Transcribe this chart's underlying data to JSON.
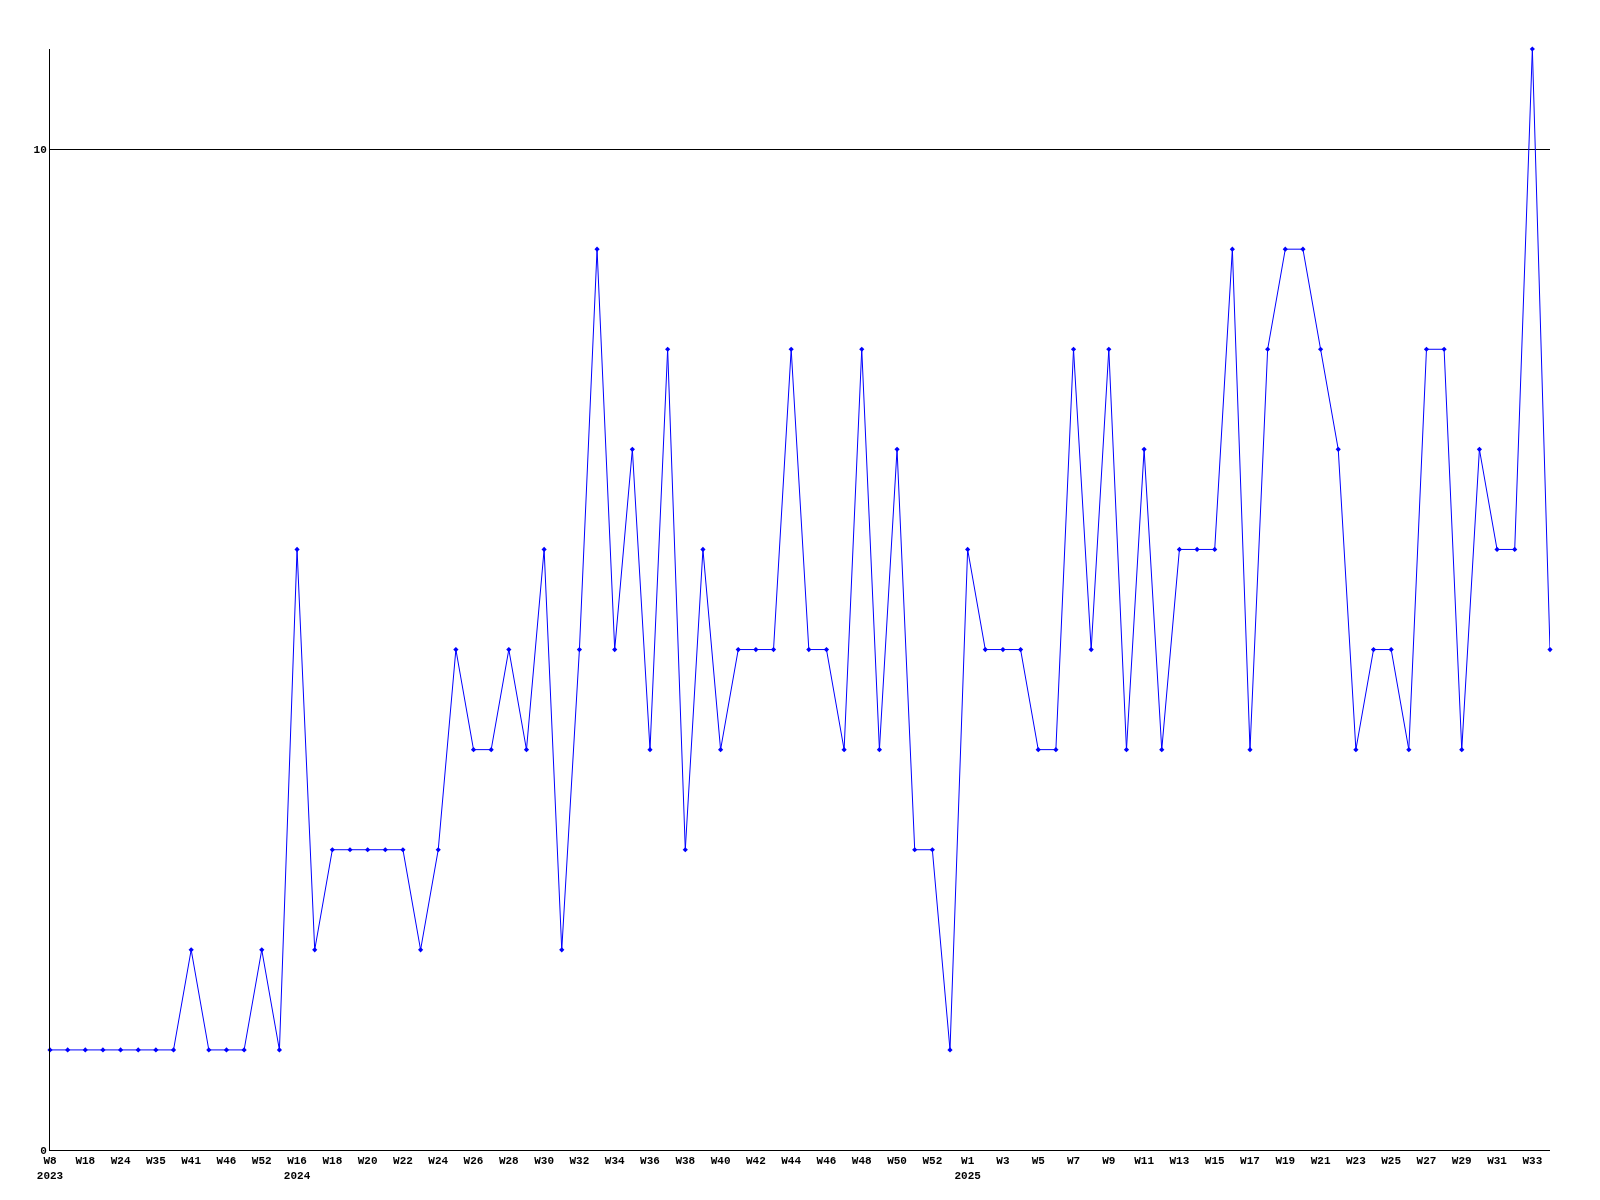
{
  "chart_data": {
    "type": "line",
    "categories": [
      "W8\n2023",
      null,
      "W18",
      null,
      "W24",
      null,
      "W35",
      null,
      "W41",
      null,
      "W46",
      null,
      "W52",
      null,
      "W16\n2024",
      null,
      "W18",
      null,
      "W20",
      null,
      "W22",
      null,
      "W24",
      null,
      "W26",
      null,
      "W28",
      null,
      "W30",
      null,
      "W32",
      null,
      "W34",
      null,
      "W36",
      null,
      "W38",
      null,
      "W40",
      null,
      "W42",
      null,
      "W44",
      null,
      "W46",
      null,
      "W48",
      null,
      "W50",
      null,
      "W52",
      null,
      "W1\n2025",
      null,
      "W3",
      null,
      "W5",
      null,
      "W7",
      null,
      "W9",
      null,
      "W11",
      null,
      "W13",
      null,
      "W15",
      null,
      "W17",
      null,
      "W19",
      null,
      "W21",
      null,
      "W23",
      null,
      "W25",
      null,
      "W27",
      null,
      "W29",
      null,
      "W31",
      null,
      "W33",
      null
    ],
    "series": [
      {
        "color": "#0000ff",
        "values": [
          1,
          1,
          1,
          1,
          1,
          1,
          1,
          1,
          2,
          1,
          1,
          1,
          2,
          1,
          6,
          2,
          3,
          3,
          3,
          3,
          3,
          2,
          3,
          5,
          4,
          4,
          5,
          4,
          6,
          2,
          5,
          9,
          5,
          7,
          4,
          8,
          3,
          6,
          4,
          5,
          5,
          5,
          8,
          5,
          5,
          4,
          8,
          4,
          7,
          3,
          3,
          1,
          6,
          5,
          5,
          5,
          4,
          4,
          8,
          5,
          8,
          4,
          7,
          4,
          6,
          6,
          6,
          9,
          4,
          8,
          9,
          9,
          8,
          7,
          4,
          5,
          5,
          4,
          8,
          8,
          4,
          7,
          6,
          6,
          11,
          5
        ]
      }
    ],
    "ylim": [
      0,
      11
    ],
    "yticks": [
      0,
      10
    ],
    "grid": "y",
    "marker": "diamond",
    "line_style": "solid"
  }
}
